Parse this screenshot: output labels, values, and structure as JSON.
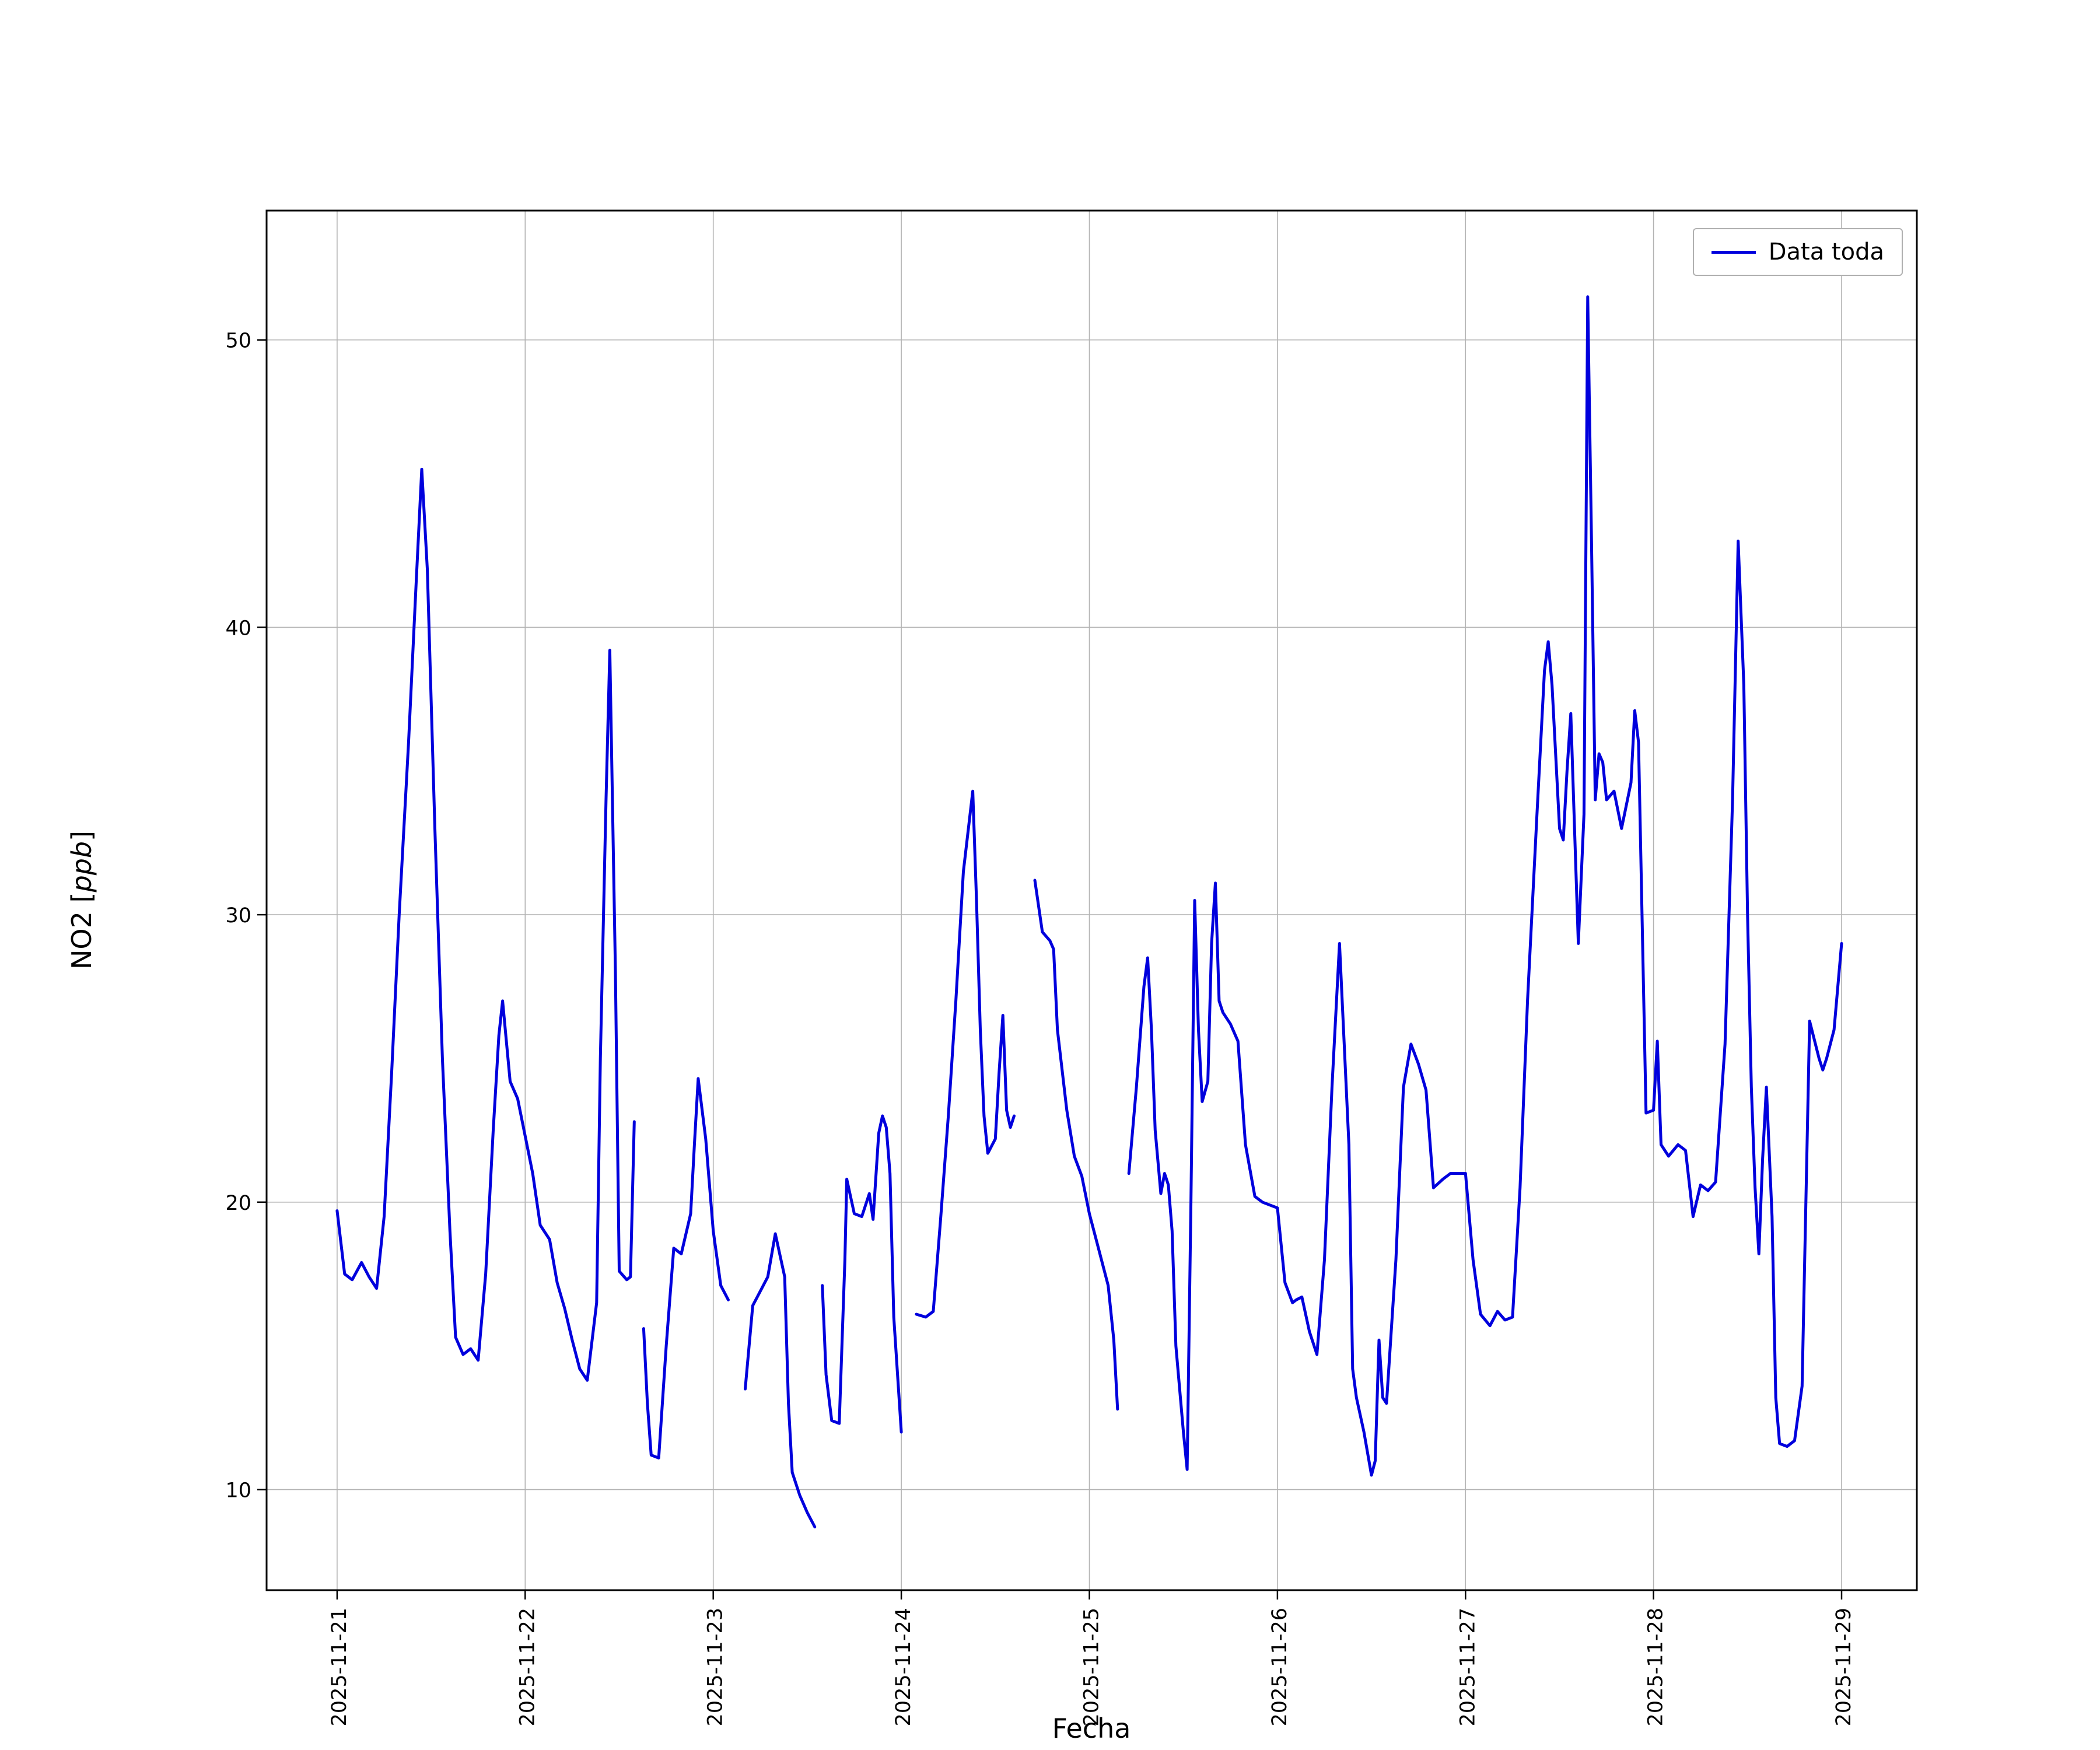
{
  "page": {
    "background": "#ffffff"
  },
  "chart_data": {
    "type": "line",
    "title": "",
    "xlabel": "Fecha",
    "ylabel": "NO2 [ppb]",
    "ylabel_parts": {
      "prefix": "NO2 [",
      "italic": "ppb",
      "suffix": "]"
    },
    "legend": {
      "label": "Data toda",
      "position": "upper right"
    },
    "line_color": "#0000dd",
    "grid": true,
    "x_unit": "days since 2025-11-21",
    "xlim": [
      -0.375,
      8.4
    ],
    "ylim": [
      6.5,
      54.5
    ],
    "y_ticks": [
      10,
      20,
      30,
      40,
      50
    ],
    "x_ticks": [
      {
        "pos": 0,
        "label": "2025-11-21"
      },
      {
        "pos": 1,
        "label": "2025-11-22"
      },
      {
        "pos": 2,
        "label": "2025-11-23"
      },
      {
        "pos": 3,
        "label": "2025-11-24"
      },
      {
        "pos": 4,
        "label": "2025-11-25"
      },
      {
        "pos": 5,
        "label": "2025-11-26"
      },
      {
        "pos": 6,
        "label": "2025-11-27"
      },
      {
        "pos": 7,
        "label": "2025-11-28"
      },
      {
        "pos": 8,
        "label": "2025-11-29"
      }
    ],
    "series": [
      {
        "name": "Data toda",
        "points": [
          [
            0.0,
            19.7
          ],
          [
            0.04,
            17.5
          ],
          [
            0.08,
            17.3
          ],
          [
            0.13,
            17.9
          ],
          [
            0.17,
            17.4
          ],
          [
            0.21,
            17.0
          ],
          [
            0.25,
            19.5
          ],
          [
            0.29,
            24.5
          ],
          [
            0.33,
            30.0
          ],
          [
            0.38,
            36.0
          ],
          [
            0.42,
            41.5
          ],
          [
            0.45,
            45.5
          ],
          [
            0.48,
            42.0
          ],
          [
            0.52,
            33.0
          ],
          [
            0.56,
            25.0
          ],
          [
            0.6,
            19.0
          ],
          [
            0.63,
            15.3
          ],
          [
            0.67,
            14.7
          ],
          [
            0.71,
            14.9
          ],
          [
            0.75,
            14.5
          ],
          [
            0.79,
            17.5
          ],
          [
            0.83,
            22.5
          ],
          [
            0.86,
            25.8
          ],
          [
            0.88,
            27.0
          ],
          [
            0.92,
            24.2
          ],
          [
            0.96,
            23.6
          ],
          [
            1.0,
            22.3
          ],
          [
            1.04,
            21.0
          ],
          [
            1.08,
            19.2
          ],
          [
            1.13,
            18.7
          ],
          [
            1.17,
            17.2
          ],
          [
            1.21,
            16.3
          ],
          [
            1.25,
            15.2
          ],
          [
            1.29,
            14.2
          ],
          [
            1.33,
            13.8
          ],
          [
            1.38,
            16.5
          ],
          [
            1.4,
            25.0
          ],
          [
            1.43,
            34.0
          ],
          [
            1.45,
            39.2
          ],
          [
            1.48,
            28.0
          ],
          [
            1.5,
            17.6
          ],
          [
            1.54,
            17.3
          ],
          [
            1.56,
            17.4
          ],
          [
            1.58,
            22.8
          ],
          [
            1.6,
            null
          ],
          [
            1.63,
            15.6
          ],
          [
            1.65,
            13.0
          ],
          [
            1.67,
            11.2
          ],
          [
            1.71,
            11.1
          ],
          [
            1.75,
            15.0
          ],
          [
            1.79,
            18.4
          ],
          [
            1.83,
            18.2
          ],
          [
            1.88,
            19.6
          ],
          [
            1.9,
            22.0
          ],
          [
            1.92,
            24.3
          ],
          [
            1.96,
            22.2
          ],
          [
            2.0,
            19.0
          ],
          [
            2.04,
            17.1
          ],
          [
            2.08,
            16.6
          ],
          [
            2.12,
            null
          ],
          [
            2.17,
            13.5
          ],
          [
            2.21,
            16.4
          ],
          [
            2.25,
            16.9
          ],
          [
            2.29,
            17.4
          ],
          [
            2.33,
            18.9
          ],
          [
            2.38,
            17.4
          ],
          [
            2.4,
            13.0
          ],
          [
            2.42,
            10.6
          ],
          [
            2.46,
            9.8
          ],
          [
            2.5,
            9.2
          ],
          [
            2.54,
            8.7
          ],
          [
            2.56,
            null
          ],
          [
            2.58,
            17.1
          ],
          [
            2.6,
            14.0
          ],
          [
            2.63,
            12.4
          ],
          [
            2.67,
            12.3
          ],
          [
            2.7,
            18.0
          ],
          [
            2.71,
            20.8
          ],
          [
            2.75,
            19.6
          ],
          [
            2.79,
            19.5
          ],
          [
            2.83,
            20.3
          ],
          [
            2.85,
            19.4
          ],
          [
            2.88,
            22.4
          ],
          [
            2.9,
            23.0
          ],
          [
            2.92,
            22.6
          ],
          [
            2.94,
            21.0
          ],
          [
            2.96,
            16.0
          ],
          [
            3.0,
            12.0
          ],
          [
            3.04,
            null
          ],
          [
            3.08,
            16.1
          ],
          [
            3.13,
            16.0
          ],
          [
            3.17,
            16.2
          ],
          [
            3.21,
            19.5
          ],
          [
            3.25,
            23.0
          ],
          [
            3.29,
            27.0
          ],
          [
            3.33,
            31.5
          ],
          [
            3.38,
            34.3
          ],
          [
            3.4,
            30.5
          ],
          [
            3.42,
            26.0
          ],
          [
            3.44,
            23.0
          ],
          [
            3.46,
            21.7
          ],
          [
            3.5,
            22.2
          ],
          [
            3.52,
            24.5
          ],
          [
            3.54,
            26.5
          ],
          [
            3.56,
            23.2
          ],
          [
            3.58,
            22.6
          ],
          [
            3.6,
            23.0
          ],
          [
            3.65,
            null
          ],
          [
            3.71,
            31.2
          ],
          [
            3.75,
            29.4
          ],
          [
            3.79,
            29.1
          ],
          [
            3.81,
            28.8
          ],
          [
            3.83,
            26.0
          ],
          [
            3.88,
            23.2
          ],
          [
            3.92,
            21.6
          ],
          [
            3.96,
            20.9
          ],
          [
            4.0,
            19.6
          ],
          [
            4.04,
            18.6
          ],
          [
            4.08,
            17.6
          ],
          [
            4.1,
            17.1
          ],
          [
            4.13,
            15.2
          ],
          [
            4.15,
            12.8
          ],
          [
            4.18,
            null
          ],
          [
            4.21,
            21.0
          ],
          [
            4.25,
            24.0
          ],
          [
            4.29,
            27.5
          ],
          [
            4.31,
            28.5
          ],
          [
            4.33,
            26.0
          ],
          [
            4.35,
            22.5
          ],
          [
            4.38,
            20.3
          ],
          [
            4.4,
            21.0
          ],
          [
            4.42,
            20.6
          ],
          [
            4.44,
            19.0
          ],
          [
            4.46,
            15.0
          ],
          [
            4.5,
            12.0
          ],
          [
            4.52,
            10.7
          ],
          [
            4.54,
            20.0
          ],
          [
            4.56,
            30.5
          ],
          [
            4.58,
            26.0
          ],
          [
            4.6,
            23.5
          ],
          [
            4.63,
            24.2
          ],
          [
            4.65,
            29.0
          ],
          [
            4.67,
            31.1
          ],
          [
            4.69,
            27.0
          ],
          [
            4.71,
            26.6
          ],
          [
            4.75,
            26.2
          ],
          [
            4.79,
            25.6
          ],
          [
            4.83,
            22.0
          ],
          [
            4.88,
            20.2
          ],
          [
            4.92,
            20.0
          ],
          [
            4.96,
            19.9
          ],
          [
            5.0,
            19.8
          ],
          [
            5.04,
            17.2
          ],
          [
            5.08,
            16.5
          ],
          [
            5.1,
            16.6
          ],
          [
            5.13,
            16.7
          ],
          [
            5.17,
            15.5
          ],
          [
            5.21,
            14.7
          ],
          [
            5.25,
            18.0
          ],
          [
            5.29,
            24.0
          ],
          [
            5.33,
            29.0
          ],
          [
            5.38,
            22.0
          ],
          [
            5.4,
            14.2
          ],
          [
            5.42,
            13.2
          ],
          [
            5.46,
            12.0
          ],
          [
            5.5,
            10.5
          ],
          [
            5.52,
            11.0
          ],
          [
            5.54,
            15.2
          ],
          [
            5.56,
            13.2
          ],
          [
            5.58,
            13.0
          ],
          [
            5.63,
            18.0
          ],
          [
            5.67,
            24.0
          ],
          [
            5.71,
            25.5
          ],
          [
            5.75,
            24.8
          ],
          [
            5.79,
            23.9
          ],
          [
            5.83,
            20.5
          ],
          [
            5.88,
            20.8
          ],
          [
            5.92,
            21.0
          ],
          [
            5.96,
            21.0
          ],
          [
            6.0,
            21.0
          ],
          [
            6.04,
            18.0
          ],
          [
            6.08,
            16.1
          ],
          [
            6.13,
            15.7
          ],
          [
            6.17,
            16.2
          ],
          [
            6.21,
            15.9
          ],
          [
            6.25,
            16.0
          ],
          [
            6.29,
            20.5
          ],
          [
            6.33,
            27.0
          ],
          [
            6.38,
            33.5
          ],
          [
            6.42,
            38.5
          ],
          [
            6.44,
            39.5
          ],
          [
            6.46,
            38.0
          ],
          [
            6.5,
            33.0
          ],
          [
            6.52,
            32.6
          ],
          [
            6.54,
            35.0
          ],
          [
            6.56,
            37.0
          ],
          [
            6.58,
            33.0
          ],
          [
            6.6,
            29.0
          ],
          [
            6.63,
            33.5
          ],
          [
            6.65,
            51.5
          ],
          [
            6.67,
            43.0
          ],
          [
            6.69,
            34.0
          ],
          [
            6.71,
            35.6
          ],
          [
            6.73,
            35.3
          ],
          [
            6.75,
            34.0
          ],
          [
            6.79,
            34.3
          ],
          [
            6.83,
            33.0
          ],
          [
            6.88,
            34.6
          ],
          [
            6.9,
            37.1
          ],
          [
            6.92,
            36.0
          ],
          [
            6.96,
            23.1
          ],
          [
            7.0,
            23.2
          ],
          [
            7.02,
            25.6
          ],
          [
            7.04,
            22.0
          ],
          [
            7.08,
            21.6
          ],
          [
            7.13,
            22.0
          ],
          [
            7.17,
            21.8
          ],
          [
            7.21,
            19.5
          ],
          [
            7.25,
            20.6
          ],
          [
            7.29,
            20.4
          ],
          [
            7.33,
            20.7
          ],
          [
            7.38,
            25.5
          ],
          [
            7.42,
            34.0
          ],
          [
            7.45,
            43.0
          ],
          [
            7.48,
            38.0
          ],
          [
            7.5,
            30.0
          ],
          [
            7.52,
            24.0
          ],
          [
            7.54,
            20.5
          ],
          [
            7.56,
            18.2
          ],
          [
            7.58,
            21.5
          ],
          [
            7.6,
            24.0
          ],
          [
            7.63,
            19.5
          ],
          [
            7.65,
            13.2
          ],
          [
            7.67,
            11.6
          ],
          [
            7.71,
            11.5
          ],
          [
            7.75,
            11.7
          ],
          [
            7.79,
            13.6
          ],
          [
            7.81,
            20.0
          ],
          [
            7.83,
            26.3
          ],
          [
            7.88,
            25.0
          ],
          [
            7.9,
            24.6
          ],
          [
            7.92,
            25.0
          ],
          [
            7.96,
            26.0
          ],
          [
            8.0,
            29.0
          ]
        ]
      }
    ]
  }
}
